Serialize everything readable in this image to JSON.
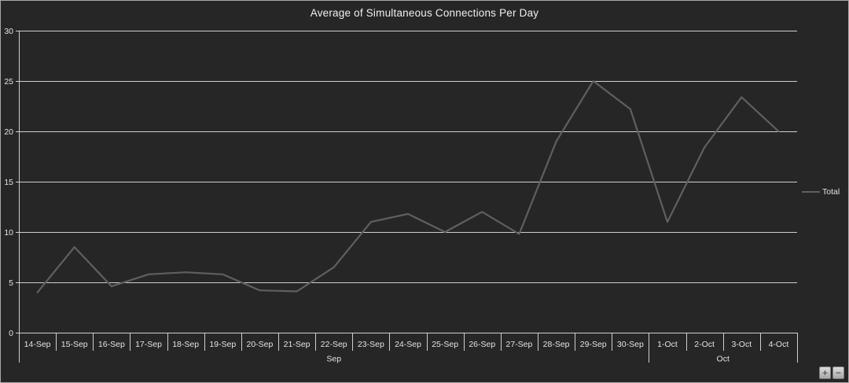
{
  "chart": {
    "title": "Average of Simultaneous Connections Per Day",
    "colors": {
      "background": "#262626",
      "frame_border": "#a9a9a9",
      "gridline": "#cfcfcf",
      "axis_text": "#e3e3e3",
      "title_text": "#f0f0f0",
      "series_line": "#5d6062",
      "button_face": "#c9c9c9"
    }
  },
  "chart_data": {
    "type": "line",
    "title": "Average of Simultaneous Connections Per Day",
    "categories": [
      "14-Sep",
      "15-Sep",
      "16-Sep",
      "17-Sep",
      "18-Sep",
      "19-Sep",
      "20-Sep",
      "21-Sep",
      "22-Sep",
      "23-Sep",
      "24-Sep",
      "25-Sep",
      "26-Sep",
      "27-Sep",
      "28-Sep",
      "29-Sep",
      "30-Sep",
      "1-Oct",
      "2-Oct",
      "3-Oct",
      "4-Oct"
    ],
    "series": [
      {
        "name": "Total",
        "values": [
          4,
          8.5,
          4.6,
          5.8,
          6,
          5.8,
          4.2,
          4.1,
          6.5,
          11,
          11.8,
          10,
          12,
          9.8,
          19,
          25,
          22.2,
          11,
          18.4,
          23.4,
          20
        ]
      }
    ],
    "category_groups": [
      {
        "label": "Sep",
        "from": 0,
        "to": 16
      },
      {
        "label": "Oct",
        "from": 17,
        "to": 20
      }
    ],
    "xlabel": "",
    "ylabel": "",
    "ylim": [
      0,
      30
    ],
    "ytick_step": 5,
    "yticks": [
      0,
      5,
      10,
      15,
      20,
      25,
      30
    ],
    "grid": true,
    "legend_position": "right-middle"
  },
  "legend": {
    "label": "Total"
  },
  "controls": {
    "expand_button_label": "+",
    "collapse_button_label": "−"
  }
}
